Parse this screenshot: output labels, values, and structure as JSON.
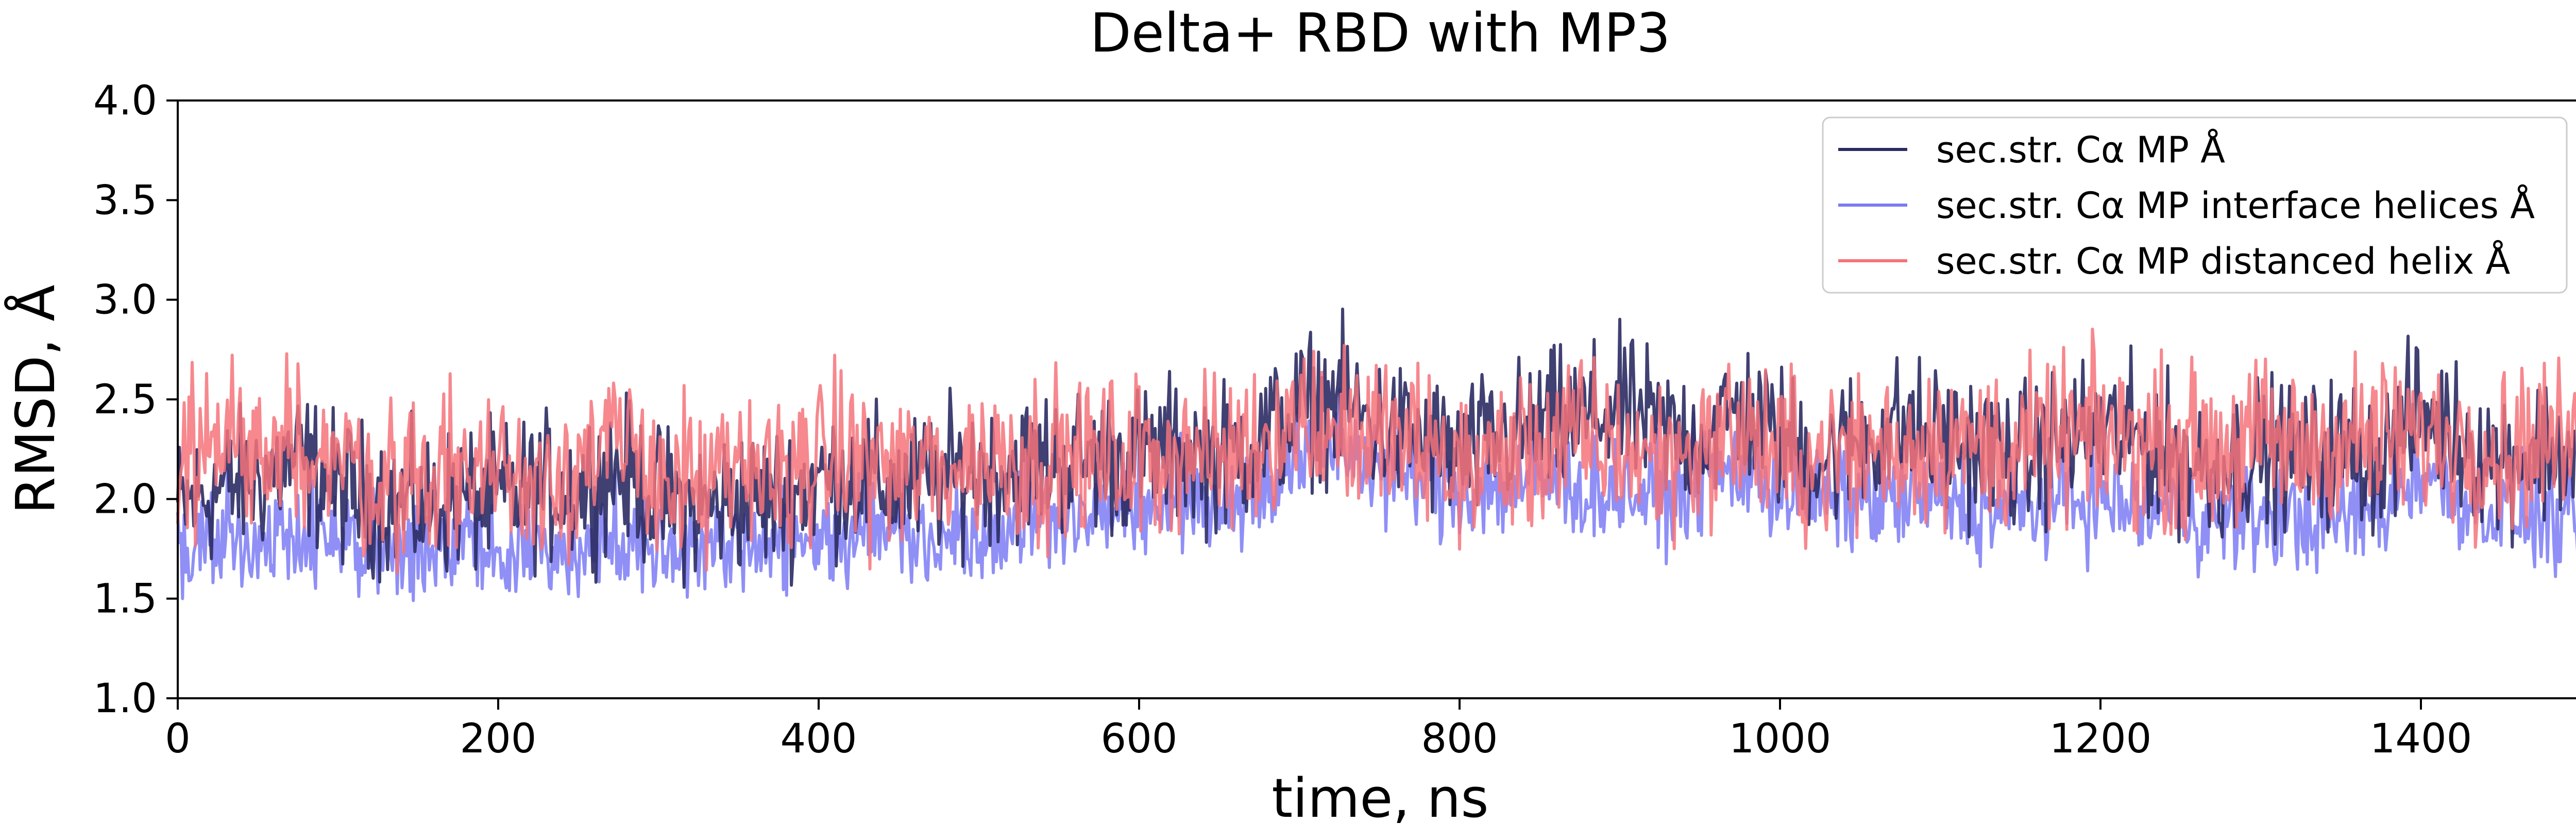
{
  "chart_data": {
    "type": "line",
    "title": "Delta+ RBD with MP3",
    "xlabel": "time, ns",
    "ylabel": "RMSD, Å",
    "xlim": [
      0,
      1500
    ],
    "ylim": [
      1.0,
      4.0
    ],
    "x_ticks": [
      0,
      200,
      400,
      600,
      800,
      1000,
      1200,
      1400
    ],
    "x_tick_labels": [
      "0",
      "200",
      "400",
      "600",
      "800",
      "1000",
      "1200",
      "1400"
    ],
    "y_ticks": [
      1.0,
      1.5,
      2.0,
      2.5,
      3.0,
      3.5,
      4.0
    ],
    "y_tick_labels": [
      "1.0",
      "1.5",
      "2.0",
      "2.5",
      "3.0",
      "3.5",
      "4.0"
    ],
    "grid": false,
    "legend_position": "top-right",
    "x": [
      0,
      25,
      50,
      75,
      100,
      125,
      150,
      175,
      200,
      225,
      250,
      275,
      300,
      325,
      350,
      375,
      400,
      425,
      450,
      475,
      500,
      525,
      550,
      575,
      600,
      625,
      650,
      675,
      700,
      725,
      750,
      775,
      800,
      825,
      850,
      875,
      900,
      925,
      950,
      975,
      1000,
      1025,
      1050,
      1075,
      1100,
      1125,
      1150,
      1175,
      1200,
      1225,
      1250,
      1275,
      1300,
      1325,
      1350,
      1375,
      1400,
      1425,
      1450,
      1475,
      1500
    ],
    "series": [
      {
        "name": "sec.str. Cα MP Å",
        "color": "#2b2b63",
        "values": [
          1.95,
          2.05,
          2.1,
          2.2,
          2.05,
          2.0,
          1.95,
          2.0,
          2.0,
          2.05,
          2.05,
          2.15,
          2.0,
          1.95,
          2.0,
          2.0,
          2.1,
          2.1,
          2.05,
          2.1,
          2.15,
          2.15,
          2.2,
          2.2,
          2.2,
          2.25,
          2.2,
          2.3,
          2.45,
          2.5,
          2.35,
          2.3,
          2.2,
          2.3,
          2.35,
          2.4,
          2.45,
          2.35,
          2.3,
          2.45,
          2.3,
          2.2,
          2.3,
          2.35,
          2.3,
          2.25,
          2.2,
          2.3,
          2.35,
          2.3,
          2.2,
          2.15,
          2.25,
          2.2,
          2.25,
          2.2,
          2.45,
          2.3,
          2.2,
          2.25,
          2.2
        ]
      },
      {
        "name": "sec.str. Cα MP interface helices Å",
        "color": "#7b7bf4",
        "values": [
          1.75,
          1.8,
          1.8,
          1.85,
          1.8,
          1.7,
          1.75,
          1.8,
          1.7,
          1.75,
          1.75,
          1.8,
          1.8,
          1.75,
          1.8,
          1.8,
          1.8,
          1.85,
          1.85,
          1.8,
          1.85,
          1.9,
          1.9,
          1.95,
          1.95,
          2.0,
          2.0,
          2.05,
          2.2,
          2.3,
          2.15,
          2.1,
          2.05,
          2.05,
          2.1,
          2.05,
          2.05,
          2.0,
          2.1,
          2.15,
          2.05,
          2.0,
          2.0,
          2.0,
          2.0,
          1.95,
          1.95,
          2.0,
          2.0,
          1.95,
          1.95,
          1.9,
          1.9,
          1.9,
          1.9,
          1.95,
          2.15,
          2.0,
          1.95,
          1.9,
          1.85
        ]
      },
      {
        "name": "sec.str. Cα MP distanced helix Å",
        "color": "#f4737a",
        "values": [
          2.15,
          2.3,
          2.25,
          2.3,
          2.2,
          2.1,
          2.1,
          2.15,
          2.15,
          2.1,
          2.2,
          2.25,
          2.15,
          2.05,
          2.1,
          2.15,
          2.2,
          2.2,
          2.15,
          2.15,
          2.2,
          2.2,
          2.2,
          2.2,
          2.2,
          2.25,
          2.2,
          2.3,
          2.4,
          2.35,
          2.3,
          2.25,
          2.15,
          2.2,
          2.25,
          2.3,
          2.25,
          2.2,
          2.25,
          2.35,
          2.2,
          2.2,
          2.25,
          2.25,
          2.3,
          2.25,
          2.25,
          2.3,
          2.3,
          2.3,
          2.25,
          2.25,
          2.3,
          2.25,
          2.3,
          2.3,
          2.3,
          2.3,
          2.25,
          2.3,
          2.25
        ]
      }
    ]
  }
}
